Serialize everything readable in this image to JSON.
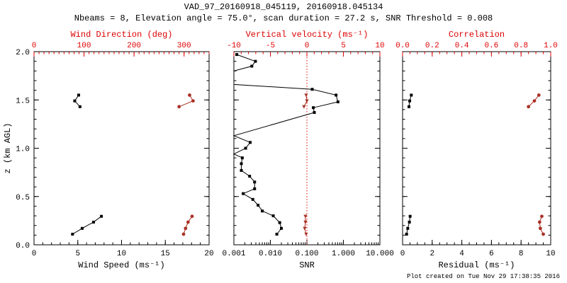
{
  "header": {
    "title": "VAD_97_20160918_045119, 20160918.045134",
    "subtitle": "Nbeams = 8, Elevation angle = 75.0°, scan duration = 27.2 s, SNR Threshold = 0.008"
  },
  "footer": {
    "created": "Plot created on Tue Nov 29 17:38:35 2016"
  },
  "colors": {
    "axis_red": "#dd0000",
    "data_red": "#a93226",
    "data_black": "#000000",
    "background": "#ffffff"
  },
  "chart_data": {
    "type": "line",
    "y_axis": {
      "label": "z (km AGL)",
      "min": 0,
      "max": 2,
      "major": [
        0,
        0.5,
        1.0,
        1.5,
        2.0
      ],
      "labels": [
        "0.0",
        "0.5",
        "1.0",
        "1.5",
        "2.0"
      ],
      "minor_step": 0.1
    },
    "panels": [
      {
        "name": "wind-panel",
        "bottom_axis": {
          "label": "Wind Speed (ms⁻¹)",
          "min": 0,
          "max": 20,
          "major": [
            0,
            5,
            10,
            15,
            20
          ],
          "labels": [
            "0",
            "5",
            "10",
            "15",
            "20"
          ],
          "minor_step": 1,
          "color": "#000000"
        },
        "top_axis": {
          "label": "Wind Direction (deg)",
          "min": 0,
          "max": 350,
          "major": [
            0,
            100,
            200,
            300
          ],
          "labels": [
            "0",
            "100",
            "200",
            "300"
          ],
          "minor_step": 10,
          "color": "#dd0000"
        },
        "series": [
          {
            "name": "wind-speed",
            "axis": "bottom",
            "color": "#000000",
            "marker": "square",
            "segments": [
              [
                [
                  4.4,
                  0.11
                ],
                [
                  5.5,
                  0.17
                ],
                [
                  6.8,
                  0.235
                ],
                [
                  7.7,
                  0.295
                ]
              ],
              [
                [
                  5.25,
                  1.43
                ],
                [
                  4.65,
                  1.49
                ],
                [
                  5.1,
                  1.55
                ]
              ]
            ]
          },
          {
            "name": "wind-direction",
            "axis": "top",
            "color": "#a93226",
            "marker": "circle",
            "segments": [
              [
                [
                  299,
                  0.11
                ],
                [
                  303,
                  0.17
                ],
                [
                  308,
                  0.235
                ],
                [
                  316,
                  0.295
                ]
              ],
              [
                [
                  290,
                  1.43
                ],
                [
                  318,
                  1.49
                ],
                [
                  311,
                  1.55
                ]
              ]
            ]
          }
        ]
      },
      {
        "name": "snr-panel",
        "bottom_axis": {
          "label": "SNR",
          "scale": "log",
          "min": 0.001,
          "max": 10,
          "major": [
            0.001,
            0.01,
            0.1,
            1,
            10
          ],
          "labels": [
            "0.001",
            "0.010",
            "0.100",
            "1.000",
            "10.000"
          ],
          "color": "#000000"
        },
        "top_axis": {
          "label": "Vertical velocity (ms⁻¹)",
          "min": -10,
          "max": 10,
          "major": [
            -10,
            -5,
            0,
            5,
            10
          ],
          "labels": [
            "-10",
            "-5",
            "0",
            "5",
            "10"
          ],
          "minor_step": 1,
          "color": "#dd0000"
        },
        "ref_line": {
          "axis": "top",
          "value": 0,
          "style": "dotted",
          "color": "#dd0000"
        },
        "series": [
          {
            "name": "snr-profile",
            "axis": "bottom",
            "color": "#000000",
            "marker": "square",
            "segments": [
              [
                [
                  0.015,
                  0.11
                ],
                [
                  0.02,
                  0.17
                ],
                [
                  0.018,
                  0.23
                ],
                [
                  0.012,
                  0.3
                ],
                [
                  0.006,
                  0.35
                ],
                [
                  0.0046,
                  0.41
                ],
                [
                  0.0033,
                  0.47
                ],
                [
                  0.0018,
                  0.53
                ],
                [
                  0.0037,
                  0.58
                ],
                [
                  0.0037,
                  0.65
                ],
                [
                  0.0027,
                  0.71
                ],
                [
                  0.0016,
                  0.77
                ],
                [
                  0.0016,
                  0.84
                ],
                [
                  0.0017,
                  0.9
                ],
                [
                  0.001,
                  0.94,
                  0
                ],
                [
                  0.0021,
                  1.0
                ],
                [
                  0.0028,
                  1.06
                ],
                [
                  0.001,
                  1.13,
                  0
                ],
                [
                  0.16,
                  1.37
                ],
                [
                  0.15,
                  1.42
                ],
                [
                  0.71,
                  1.48
                ],
                [
                  0.63,
                  1.55
                ],
                [
                  0.14,
                  1.61
                ],
                [
                  0.001,
                  1.66,
                  0
                ],
                [
                  0.001,
                  1.8,
                  0
                ],
                [
                  0.0031,
                  1.85
                ],
                [
                  0.0039,
                  1.9
                ],
                [
                  0.0012,
                  1.97
                ]
              ]
            ]
          },
          {
            "name": "vertical-velocity",
            "axis": "top",
            "color": "#a93226",
            "marker": "triangle-down",
            "segments": [
              [
                [
                  -0.1,
                  0.11
                ],
                [
                  -0.3,
                  0.17
                ],
                [
                  -0.2,
                  0.235
                ],
                [
                  -0.2,
                  0.295
                ]
              ],
              [
                [
                  -0.4,
                  1.43
                ],
                [
                  0.0,
                  1.49
                ],
                [
                  -0.1,
                  1.55
                ]
              ]
            ]
          }
        ]
      },
      {
        "name": "residual-panel",
        "bottom_axis": {
          "label": "Residual (ms⁻¹)",
          "min": 0,
          "max": 10,
          "major": [
            0,
            2,
            4,
            6,
            8,
            10
          ],
          "labels": [
            "0",
            "2",
            "4",
            "6",
            "8",
            "10"
          ],
          "minor_step": 0.5,
          "color": "#000000"
        },
        "top_axis": {
          "label": "Correlation",
          "min": 0,
          "max": 1,
          "major": [
            0,
            0.2,
            0.4,
            0.6,
            0.8,
            1.0
          ],
          "labels": [
            "0.0",
            "0.2",
            "0.4",
            "0.6",
            "0.8",
            "1.0"
          ],
          "minor_step": 0.05,
          "color": "#dd0000"
        },
        "series": [
          {
            "name": "residual",
            "axis": "bottom",
            "color": "#000000",
            "marker": "square",
            "segments": [
              [
                [
                  0.27,
                  0.11
                ],
                [
                  0.35,
                  0.17
                ],
                [
                  0.46,
                  0.235
                ],
                [
                  0.51,
                  0.295
                ]
              ],
              [
                [
                  0.43,
                  1.43
                ],
                [
                  0.48,
                  1.49
                ],
                [
                  0.59,
                  1.55
                ]
              ]
            ]
          },
          {
            "name": "correlation",
            "axis": "top",
            "color": "#a93226",
            "marker": "circle",
            "segments": [
              [
                [
                  0.95,
                  0.11
                ],
                [
                  0.93,
                  0.17
                ],
                [
                  0.925,
                  0.235
                ],
                [
                  0.94,
                  0.295
                ]
              ],
              [
                [
                  0.85,
                  1.43
                ],
                [
                  0.89,
                  1.49
                ],
                [
                  0.92,
                  1.55
                ]
              ]
            ]
          }
        ]
      }
    ]
  }
}
